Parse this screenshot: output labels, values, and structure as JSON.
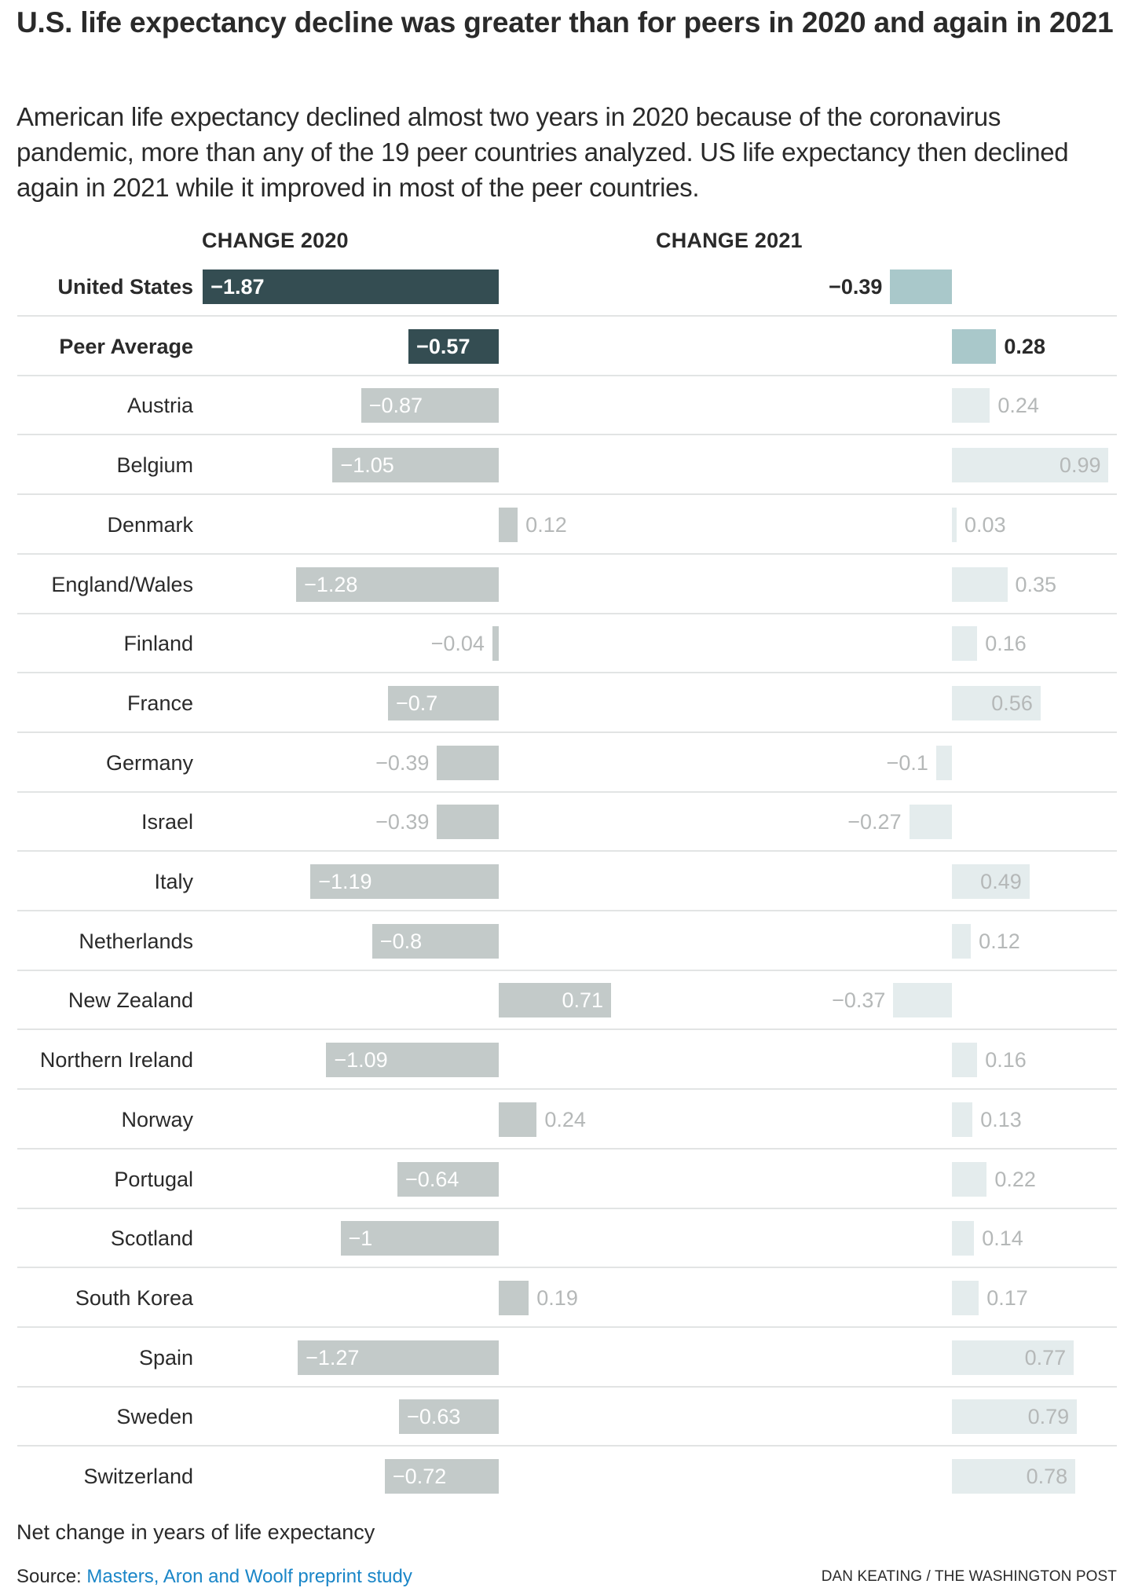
{
  "header": {
    "title": "U.S. life expectancy decline was greater than for peers in 2020 and again in 2021",
    "subtitle": "American life expectancy declined almost two years in 2020 because of the coronavirus pandemic, more than any of the 19 peer countries analyzed. US life expectancy then declined again in 2021 while it improved in most of the peer countries."
  },
  "colors": {
    "highlight_2020": "#344d52",
    "highlight_2021": "#a9c8ca",
    "peer_2020": "#c3cac9",
    "peer_2021": "#e4eced",
    "label_muted": "#b5b8b8",
    "link": "#1a86c8"
  },
  "chart_data": {
    "type": "bar",
    "orientation": "horizontal",
    "title": "U.S. life expectancy decline was greater than for peers in 2020 and again in 2021",
    "xlabel": "Net change in years of life expectancy",
    "series": [
      {
        "name": "CHANGE 2020",
        "values": [
          -1.87,
          -0.57,
          -0.87,
          -1.05,
          0.12,
          -1.28,
          -0.04,
          -0.7,
          -0.39,
          -0.39,
          -1.19,
          -0.8,
          0.71,
          -1.09,
          0.24,
          -0.64,
          -1,
          0.19,
          -1.27,
          -0.63,
          -0.72
        ]
      },
      {
        "name": "CHANGE 2021",
        "values": [
          -0.39,
          0.28,
          0.24,
          0.99,
          0.03,
          0.35,
          0.16,
          0.56,
          -0.1,
          -0.27,
          0.49,
          0.12,
          -0.37,
          0.16,
          0.13,
          0.22,
          0.14,
          0.17,
          0.77,
          0.79,
          0.78
        ]
      }
    ],
    "categories": [
      "United States",
      "Peer Average",
      "Austria",
      "Belgium",
      "Denmark",
      "England/Wales",
      "Finland",
      "France",
      "Germany",
      "Israel",
      "Italy",
      "Netherlands",
      "New Zealand",
      "Northern Ireland",
      "Norway",
      "Portugal",
      "Scotland",
      "South Korea",
      "Spain",
      "Sweden",
      "Switzerland"
    ],
    "highlighted": [
      "United States",
      "Peer Average"
    ],
    "value_labels_2020": [
      "−1.87",
      "−0.57",
      "−0.87",
      "−1.05",
      "0.12",
      "−1.28",
      "−0.04",
      "−0.7",
      "−0.39",
      "−0.39",
      "−1.19",
      "−0.8",
      "0.71",
      "−1.09",
      "0.24",
      "−0.64",
      "−1",
      "0.19",
      "−1.27",
      "−0.63",
      "−0.72"
    ],
    "value_labels_2021": [
      "−0.39",
      "0.28",
      "0.24",
      "0.99",
      "0.03",
      "0.35",
      "0.16",
      "0.56",
      "−0.1",
      "−0.27",
      "0.49",
      "0.12",
      "−0.37",
      "0.16",
      "0.13",
      "0.22",
      "0.14",
      "0.17",
      "0.77",
      "0.79",
      "0.78"
    ],
    "grid": false,
    "legend": "none"
  },
  "footer": {
    "footnote": "Net change in years of life expectancy",
    "source_prefix": "Source: ",
    "source_link": "Masters, Aron and Woolf preprint study",
    "credit": "DAN KEATING / THE WASHINGTON POST"
  }
}
